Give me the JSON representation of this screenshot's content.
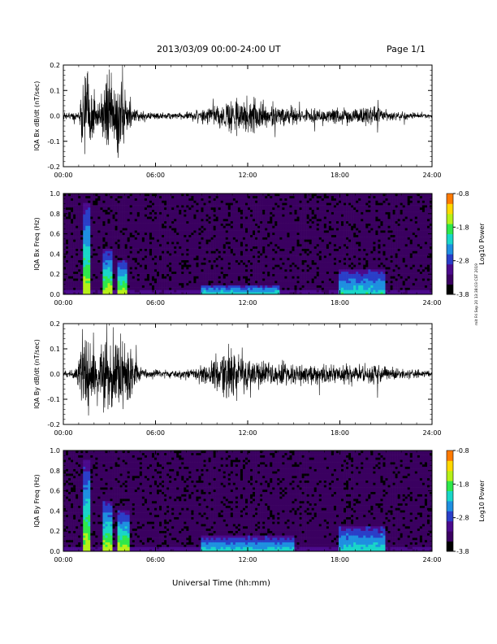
{
  "header": {
    "date_range": "2013/03/09  00:00-24:00 UT",
    "page": "Page 1/1"
  },
  "side_note": "mit Fri Sep 20 13:38:03 CST 2019",
  "xlabel": "Universal Time (hh:mm)",
  "colors": {
    "trace": "#000000",
    "colormap": [
      "#000000",
      "#3a0060",
      "#4b0a8c",
      "#2a3ec8",
      "#1e8fe0",
      "#19d6c8",
      "#2ee84b",
      "#b6f018",
      "#ffd800",
      "#ff7a00",
      "#ff0000"
    ]
  },
  "chart_data": [
    {
      "type": "line",
      "name": "IQA Bx dB/dt",
      "ylabel": "IQA Bx dB/dt (nT/sec)",
      "xlim": [
        0,
        24
      ],
      "ylim": [
        -0.2,
        0.2
      ],
      "x_ticks": [
        "00:00",
        "06:00",
        "12:00",
        "18:00",
        "24:00"
      ],
      "y_ticks": [
        "0.2",
        "0.1",
        "0.0",
        "-0.1",
        "-0.2"
      ],
      "envelope": {
        "x_hours": [
          0,
          1.0,
          1.3,
          1.7,
          2.2,
          2.6,
          3.0,
          3.4,
          3.8,
          4.2,
          4.6,
          5.5,
          7,
          8,
          9,
          10,
          10.5,
          11,
          11.5,
          12,
          12.5,
          13,
          14,
          15,
          16,
          17,
          18,
          19,
          20,
          21,
          22,
          24
        ],
        "amplitude": [
          0.02,
          0.03,
          0.22,
          0.22,
          0.08,
          0.13,
          0.22,
          0.22,
          0.22,
          0.1,
          0.04,
          0.02,
          0.02,
          0.02,
          0.04,
          0.06,
          0.09,
          0.12,
          0.1,
          0.1,
          0.09,
          0.08,
          0.06,
          0.05,
          0.04,
          0.04,
          0.05,
          0.04,
          0.06,
          0.03,
          0.02,
          0.01
        ]
      }
    },
    {
      "type": "heatmap",
      "name": "IQA Bx Freq",
      "ylabel": "IQA Bx Freq (Hz)",
      "xlim": [
        0,
        24
      ],
      "ylim": [
        0,
        1.0
      ],
      "x_ticks": [
        "00:00",
        "06:00",
        "12:00",
        "18:00",
        "24:00"
      ],
      "y_ticks": [
        "1.0",
        "0.8",
        "0.6",
        "0.4",
        "0.2",
        "0.0"
      ],
      "colorbar": {
        "label": "Log10 Power",
        "range": [
          -3.8,
          -0.8
        ],
        "ticks": [
          "-0.8",
          "-1.8",
          "-2.8",
          "-3.8"
        ]
      },
      "features": [
        {
          "x_hours": [
            1.3,
            1.7
          ],
          "f_top": 0.9,
          "level": "strong"
        },
        {
          "x_hours": [
            2.6,
            3.2
          ],
          "f_top": 0.45,
          "level": "strong"
        },
        {
          "x_hours": [
            3.5,
            4.2
          ],
          "f_top": 0.35,
          "level": "strong"
        },
        {
          "x_hours": [
            9,
            14
          ],
          "f_top": 0.1,
          "level": "medium"
        },
        {
          "x_hours": [
            18,
            21
          ],
          "f_top": 0.25,
          "level": "medium"
        }
      ]
    },
    {
      "type": "line",
      "name": "IQA By dB/dt",
      "ylabel": "IQA By dB/dt (nT/sec)",
      "xlim": [
        0,
        24
      ],
      "ylim": [
        -0.2,
        0.2
      ],
      "x_ticks": [
        "00:00",
        "06:00",
        "12:00",
        "18:00",
        "24:00"
      ],
      "y_ticks": [
        "0.2",
        "0.1",
        "0.0",
        "-0.1",
        "-0.2"
      ],
      "envelope": {
        "x_hours": [
          0,
          0.8,
          1.3,
          1.8,
          2.2,
          2.6,
          3.0,
          3.5,
          4.0,
          4.4,
          4.8,
          5.5,
          7,
          8,
          9,
          10,
          10.5,
          11,
          11.5,
          12,
          12.5,
          13,
          14,
          15,
          16,
          17,
          18,
          19,
          20,
          21,
          22,
          24
        ],
        "amplitude": [
          0.02,
          0.03,
          0.22,
          0.22,
          0.08,
          0.22,
          0.22,
          0.22,
          0.22,
          0.18,
          0.05,
          0.03,
          0.02,
          0.03,
          0.05,
          0.09,
          0.14,
          0.14,
          0.13,
          0.1,
          0.09,
          0.08,
          0.07,
          0.06,
          0.06,
          0.05,
          0.06,
          0.05,
          0.06,
          0.04,
          0.03,
          0.02
        ]
      }
    },
    {
      "type": "heatmap",
      "name": "IQA By Freq",
      "ylabel": "IQA By Freq (Hz)",
      "xlim": [
        0,
        24
      ],
      "ylim": [
        0,
        1.0
      ],
      "x_ticks": [
        "00:00",
        "06:00",
        "12:00",
        "18:00",
        "24:00"
      ],
      "y_ticks": [
        "1.0",
        "0.8",
        "0.6",
        "0.4",
        "0.2",
        "0.0"
      ],
      "colorbar": {
        "label": "Log10 Power",
        "range": [
          -3.8,
          -0.8
        ],
        "ticks": [
          "-0.8",
          "-1.8",
          "-2.8",
          "-3.8"
        ]
      },
      "features": [
        {
          "x_hours": [
            1.3,
            1.7
          ],
          "f_top": 0.9,
          "level": "strong"
        },
        {
          "x_hours": [
            2.6,
            3.2
          ],
          "f_top": 0.5,
          "level": "strong"
        },
        {
          "x_hours": [
            3.5,
            4.3
          ],
          "f_top": 0.4,
          "level": "strong"
        },
        {
          "x_hours": [
            9,
            15
          ],
          "f_top": 0.15,
          "level": "medium"
        },
        {
          "x_hours": [
            18,
            21
          ],
          "f_top": 0.25,
          "level": "medium"
        }
      ]
    }
  ]
}
